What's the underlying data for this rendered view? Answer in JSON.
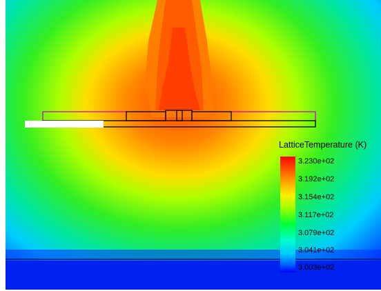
{
  "chart_data": {
    "type": "heatmap",
    "title": "LatticeTemperature (K)",
    "colorbar": {
      "min": 300.3,
      "max": 323.0,
      "tick_labels": [
        "3.230e+02",
        "3.192e+02",
        "3.154e+02",
        "3.117e+02",
        "3.079e+02",
        "3.041e+02",
        "3.003e+02"
      ],
      "colormap": [
        "#0000ff",
        "#00ffff",
        "#00ff00",
        "#ffff00",
        "#ff0000"
      ]
    }
  }
}
